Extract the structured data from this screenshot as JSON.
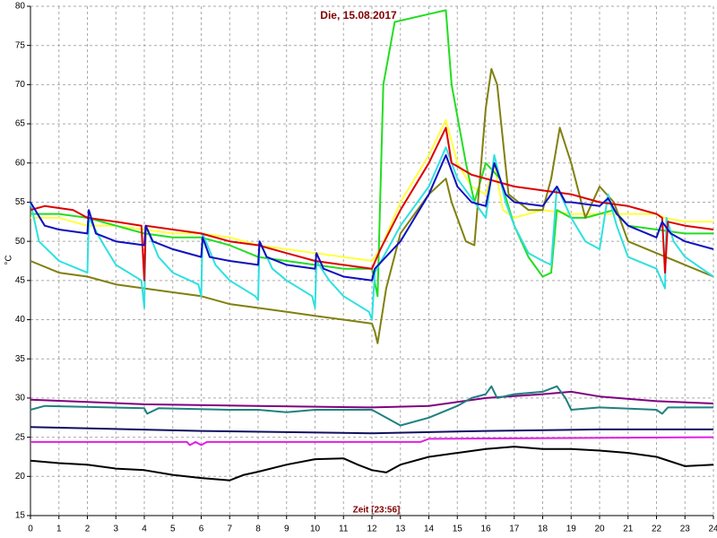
{
  "chart_data": {
    "type": "line",
    "title": "Die, 15.08.2017",
    "x_label": "Zeit [23:56]",
    "y_label": "°C",
    "xlim": [
      0,
      24
    ],
    "xticks": [
      0,
      1,
      2,
      3,
      4,
      5,
      6,
      7,
      8,
      9,
      10,
      11,
      12,
      13,
      14,
      15,
      16,
      17,
      18,
      19,
      20,
      21,
      22,
      23,
      24
    ],
    "ylim": [
      15,
      80
    ],
    "yticks": [
      15,
      20,
      25,
      30,
      35,
      40,
      45,
      50,
      55,
      60,
      65,
      70,
      75,
      80
    ],
    "grid": true,
    "series": [
      {
        "color": "#ffff40",
        "x": [
          0,
          1,
          2,
          3,
          4,
          5,
          6,
          7,
          8,
          9,
          10,
          11,
          12,
          12.3,
          13,
          14,
          14.6,
          15,
          15.5,
          16,
          16.3,
          16.6,
          17,
          18,
          19,
          20,
          21,
          22,
          22.3,
          23,
          24
        ],
        "values": [
          53,
          53,
          52,
          52,
          51.5,
          51,
          51,
          50.5,
          49.5,
          49,
          48.5,
          48,
          47.5,
          49,
          55,
          61,
          65.5,
          60,
          57,
          56,
          60,
          54,
          53,
          54,
          53.5,
          53.5,
          53.5,
          53.5,
          53,
          52.5,
          52.5
        ]
      },
      {
        "color": "#22dd22",
        "x": [
          0,
          1,
          2,
          3,
          4,
          5,
          6,
          7,
          8,
          9,
          10,
          11,
          12,
          12.2,
          12.4,
          12.8,
          14,
          14.6,
          14.8,
          15.3,
          15.6,
          16,
          16.5,
          17,
          17.5,
          18,
          18.3,
          18.5,
          19,
          19.5,
          20,
          20.5,
          21,
          22,
          23,
          24
        ],
        "values": [
          53.5,
          53.5,
          53,
          52,
          51,
          50.5,
          50.5,
          49.5,
          48,
          47.5,
          47,
          46.5,
          46.5,
          43,
          70,
          78,
          79,
          79.5,
          70,
          60,
          55,
          60,
          58,
          52,
          48,
          45.5,
          46,
          54,
          53,
          53,
          53.5,
          54,
          52,
          51.5,
          51,
          51
        ]
      },
      {
        "color": "#808010",
        "x": [
          0,
          1,
          2,
          3,
          4,
          5,
          6,
          7,
          8,
          9,
          10,
          11,
          12,
          12.1,
          12.2,
          12.5,
          13,
          14,
          14.6,
          14.8,
          15.3,
          15.6,
          16,
          16.2,
          16.4,
          16.8,
          17.5,
          18,
          18.3,
          18.6,
          19,
          19.5,
          20,
          20.5,
          21,
          22,
          23,
          24
        ],
        "values": [
          47.5,
          46,
          45.5,
          44.5,
          44,
          43.5,
          43,
          42,
          41.5,
          41,
          40.5,
          40,
          39.5,
          38.5,
          37,
          44,
          51,
          56,
          58,
          55,
          50,
          49.5,
          67,
          72,
          70,
          56,
          54,
          54,
          58,
          64.5,
          60,
          53,
          57,
          55,
          50,
          48.5,
          47,
          45.5
        ]
      },
      {
        "color": "#30e0e0",
        "x": [
          0,
          0.3,
          1,
          2,
          2.05,
          2.5,
          3,
          3.9,
          4,
          4.05,
          4.5,
          5,
          5.9,
          6,
          6.05,
          6.5,
          7,
          7.9,
          8,
          8.05,
          8.5,
          9,
          9.9,
          10,
          10.05,
          10.5,
          11,
          11.9,
          12,
          12.1,
          13,
          14,
          14.6,
          15,
          15.5,
          16,
          16.3,
          16.7,
          17,
          17.5,
          18,
          18.3,
          18.5,
          19,
          19.5,
          20,
          20.3,
          20.6,
          21,
          22,
          22.3,
          22.35,
          22.6,
          23,
          24
        ],
        "values": [
          55,
          50,
          47.5,
          46,
          53,
          50,
          47,
          45,
          41.5,
          52,
          48,
          46,
          44.5,
          43,
          51,
          47,
          45,
          43,
          42.5,
          50,
          46.5,
          45,
          43,
          41.5,
          47.5,
          45,
          43,
          41,
          40,
          46,
          52,
          57,
          62,
          58,
          55.5,
          53,
          61,
          55,
          52,
          48.5,
          47.5,
          47,
          57,
          53,
          50,
          49,
          56,
          52,
          48,
          46.5,
          44,
          53,
          50,
          48,
          45.5
        ]
      },
      {
        "color": "#dd0000",
        "x": [
          0,
          0.5,
          1.5,
          2,
          3,
          3.9,
          4,
          4.05,
          5,
          6,
          7,
          8,
          9,
          10,
          11,
          12,
          12.3,
          13,
          14,
          14.6,
          14.8,
          15.5,
          16,
          17,
          18,
          19,
          20,
          21,
          22,
          22.2,
          22.3,
          22.4,
          23,
          24
        ],
        "values": [
          54,
          54.5,
          54,
          53,
          52.5,
          52,
          45,
          52,
          51.5,
          51,
          50,
          49.5,
          48.5,
          47.5,
          47,
          46.5,
          49,
          54,
          60,
          64.5,
          60,
          58.5,
          58,
          57,
          56.5,
          56,
          55,
          54.5,
          53.5,
          53,
          46,
          52.5,
          52,
          51.5
        ]
      },
      {
        "color": "#1010c0",
        "x": [
          0,
          0.5,
          1,
          2,
          2.05,
          2.3,
          3,
          4,
          4.05,
          4.3,
          5,
          6,
          6.05,
          6.3,
          7,
          8,
          8.05,
          8.3,
          9,
          10,
          10.05,
          10.3,
          11,
          12,
          12.1,
          13,
          14,
          14.6,
          15,
          15.5,
          16,
          16.3,
          16.7,
          17,
          18,
          18.5,
          18.8,
          19,
          20,
          20.3,
          20.6,
          21,
          22,
          22.2,
          22.5,
          23,
          24
        ],
        "values": [
          55,
          52,
          51.5,
          51,
          54,
          51,
          50,
          49.5,
          52,
          50,
          49,
          48,
          50.5,
          48,
          47.5,
          47,
          50,
          48,
          47,
          46.5,
          48.5,
          46.5,
          45.5,
          45,
          46.5,
          50,
          56,
          61,
          57,
          55,
          54.5,
          60,
          56,
          55,
          54.5,
          57,
          55,
          55,
          54.5,
          55.5,
          53.5,
          52,
          50.5,
          52.5,
          51,
          50,
          49
        ]
      },
      {
        "color": "#800080",
        "x": [
          0,
          4,
          8,
          12,
          14,
          16,
          18,
          19,
          20,
          22,
          24
        ],
        "values": [
          29.8,
          29.2,
          29,
          28.8,
          29,
          30,
          30.5,
          30.8,
          30.2,
          29.6,
          29.3
        ]
      },
      {
        "color": "#208080",
        "x": [
          0,
          0.5,
          4,
          4.1,
          4.5,
          7,
          8,
          9,
          10,
          12,
          12.5,
          13,
          14,
          15,
          15.5,
          16,
          16.2,
          16.4,
          17,
          18,
          18.5,
          18.8,
          19,
          20,
          22,
          22.2,
          22.4,
          24
        ],
        "values": [
          28.5,
          29,
          28.7,
          28,
          28.7,
          28.5,
          28.5,
          28.2,
          28.5,
          28.5,
          27.5,
          26.5,
          27.5,
          29,
          30,
          30.5,
          31.5,
          30,
          30.5,
          30.8,
          31.5,
          30,
          28.5,
          28.8,
          28.5,
          28,
          28.8,
          28.8
        ]
      },
      {
        "color": "#101060",
        "x": [
          0,
          6,
          12,
          16,
          20,
          24
        ],
        "values": [
          26.3,
          25.8,
          25.5,
          25.8,
          26,
          26
        ]
      },
      {
        "color": "#e020e0",
        "x": [
          0,
          5.5,
          5.6,
          5.8,
          6,
          6.2,
          13.7,
          14,
          24
        ],
        "values": [
          24.4,
          24.4,
          24,
          24.4,
          24,
          24.4,
          24.4,
          24.8,
          25
        ]
      },
      {
        "color": "#000000",
        "x": [
          0,
          1,
          2,
          3,
          4,
          5,
          6,
          7,
          7.5,
          8,
          9,
          10,
          11,
          11.5,
          12,
          12.5,
          13,
          14,
          15,
          16,
          17,
          18,
          19,
          20,
          21,
          22,
          23,
          24
        ],
        "values": [
          22,
          21.7,
          21.5,
          21,
          20.8,
          20.2,
          19.8,
          19.5,
          20.2,
          20.6,
          21.5,
          22.2,
          22.3,
          21.5,
          20.8,
          20.5,
          21.5,
          22.5,
          23,
          23.5,
          23.8,
          23.5,
          23.5,
          23.3,
          23,
          22.5,
          21.3,
          21.5
        ]
      }
    ]
  }
}
